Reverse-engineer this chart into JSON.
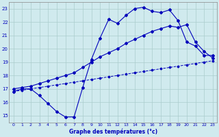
{
  "title": "Graphe des températures (°c)",
  "bg_color": "#d0eaee",
  "grid_color": "#aacccc",
  "line_color": "#0000bb",
  "xlim": [
    -0.5,
    23.5
  ],
  "ylim": [
    14.5,
    23.5
  ],
  "yticks": [
    15,
    16,
    17,
    18,
    19,
    20,
    21,
    22,
    23
  ],
  "xticks": [
    0,
    1,
    2,
    3,
    4,
    5,
    6,
    7,
    8,
    9,
    10,
    11,
    12,
    13,
    14,
    15,
    16,
    17,
    18,
    19,
    20,
    21,
    22,
    23
  ],
  "line1_x": [
    0,
    1,
    2,
    3,
    4,
    5,
    6,
    7,
    8,
    9,
    10,
    11,
    12,
    13,
    14,
    15,
    16,
    17,
    18,
    19,
    20,
    21,
    22,
    23
  ],
  "line1_y": [
    16.8,
    17.0,
    17.0,
    16.5,
    15.9,
    15.3,
    14.9,
    14.9,
    17.1,
    19.2,
    20.8,
    22.2,
    21.9,
    22.5,
    23.0,
    23.1,
    22.8,
    22.7,
    22.9,
    22.1,
    20.5,
    20.2,
    19.5,
    19.5
  ],
  "line2_x": [
    0,
    1,
    2,
    3,
    4,
    5,
    6,
    7,
    8,
    9,
    10,
    11,
    12,
    13,
    14,
    15,
    16,
    17,
    18,
    19,
    20,
    21,
    22,
    23
  ],
  "line2_y": [
    17.0,
    17.1,
    17.2,
    17.4,
    17.6,
    17.8,
    18.0,
    18.2,
    18.6,
    19.0,
    19.4,
    19.7,
    20.0,
    20.4,
    20.7,
    21.0,
    21.3,
    21.5,
    21.7,
    21.6,
    21.8,
    20.5,
    19.8,
    19.3
  ],
  "line3_x": [
    0,
    1,
    2,
    3,
    4,
    5,
    6,
    7,
    8,
    9,
    10,
    11,
    12,
    13,
    14,
    15,
    16,
    17,
    18,
    19,
    20,
    21,
    22,
    23
  ],
  "line3_y": [
    16.8,
    16.9,
    17.0,
    17.1,
    17.2,
    17.3,
    17.4,
    17.5,
    17.6,
    17.7,
    17.8,
    17.9,
    18.0,
    18.1,
    18.2,
    18.3,
    18.4,
    18.5,
    18.6,
    18.7,
    18.8,
    18.9,
    19.0,
    19.1
  ]
}
